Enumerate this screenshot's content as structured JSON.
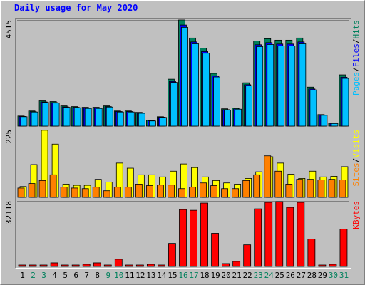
{
  "chart_data": [
    {
      "type": "bar",
      "title": "Daily usage for May 2020",
      "ylim": [
        0,
        4515
      ],
      "yticks": [
        4515
      ],
      "legend_separator": "/",
      "series": [
        {
          "name": "Hits",
          "color": "#00805c",
          "values": [
            430,
            645,
            1075,
            1044,
            860,
            830,
            800,
            800,
            860,
            645,
            645,
            585,
            245,
            400,
            1996,
            4515,
            3747,
            3317,
            2242,
            737,
            768,
            1843,
            3624,
            3716,
            3655,
            3655,
            3747,
            1659,
            491,
            123,
            2180
          ]
        },
        {
          "name": "Files",
          "color": "#0000ff",
          "values": [
            410,
            615,
            1030,
            1000,
            820,
            800,
            770,
            770,
            830,
            620,
            620,
            560,
            230,
            380,
            1900,
            4300,
            3580,
            3170,
            2140,
            700,
            735,
            1760,
            3460,
            3550,
            3490,
            3490,
            3580,
            1580,
            470,
            115,
            2080
          ]
        },
        {
          "name": "Pages",
          "color": "#00c0ff",
          "values": [
            400,
            600,
            1010,
            980,
            800,
            780,
            750,
            750,
            810,
            600,
            600,
            545,
            220,
            370,
            1860,
            4200,
            3500,
            3100,
            2090,
            680,
            720,
            1720,
            3380,
            3470,
            3410,
            3410,
            3500,
            1540,
            460,
            110,
            2030
          ]
        }
      ]
    },
    {
      "type": "bar",
      "ylim": [
        0,
        225
      ],
      "yticks": [
        225
      ],
      "legend_separator": "/",
      "series": [
        {
          "name": "Visits",
          "color": "#ffff00",
          "values": [
            36,
            109,
            223,
            177,
            44,
            40,
            40,
            60,
            51,
            114,
            97,
            75,
            75,
            68,
            87,
            111,
            99,
            68,
            56,
            48,
            44,
            63,
            85,
            135,
            114,
            77,
            63,
            87,
            68,
            70,
            102
          ]
        },
        {
          "name": "Sites",
          "color": "#ff8000",
          "values": [
            31,
            46,
            56,
            75,
            34,
            31,
            29,
            34,
            22,
            34,
            34,
            44,
            39,
            41,
            41,
            29,
            34,
            48,
            39,
            29,
            29,
            56,
            75,
            138,
            87,
            44,
            60,
            60,
            58,
            60,
            58
          ]
        }
      ]
    },
    {
      "type": "bar",
      "ylim": [
        0,
        32118
      ],
      "yticks": [
        32118
      ],
      "categories": [
        "1",
        "2",
        "3",
        "4",
        "5",
        "6",
        "7",
        "8",
        "9",
        "10",
        "11",
        "12",
        "13",
        "14",
        "15",
        "16",
        "17",
        "18",
        "19",
        "20",
        "21",
        "22",
        "23",
        "24",
        "25",
        "26",
        "27",
        "28",
        "29",
        "30",
        "31"
      ],
      "category_colors": [
        "#000000",
        "#00805c",
        "#00805c",
        "#000000",
        "#000000",
        "#000000",
        "#000000",
        "#000000",
        "#00805c",
        "#00805c",
        "#000000",
        "#000000",
        "#000000",
        "#000000",
        "#000000",
        "#00805c",
        "#00805c",
        "#000000",
        "#000000",
        "#000000",
        "#000000",
        "#000000",
        "#00805c",
        "#00805c",
        "#000000",
        "#000000",
        "#000000",
        "#000000",
        "#000000",
        "#00805c",
        "#00805c"
      ],
      "series": [
        {
          "name": "KBytes",
          "color": "#ff0000",
          "values": [
            700,
            700,
            700,
            1760,
            700,
            700,
            1060,
            1760,
            700,
            3530,
            700,
            700,
            1060,
            700,
            11300,
            27880,
            27530,
            31060,
            16240,
            1410,
            2470,
            10590,
            28240,
            31410,
            31770,
            28950,
            31410,
            13410,
            700,
            1060,
            18350
          ]
        }
      ]
    }
  ]
}
